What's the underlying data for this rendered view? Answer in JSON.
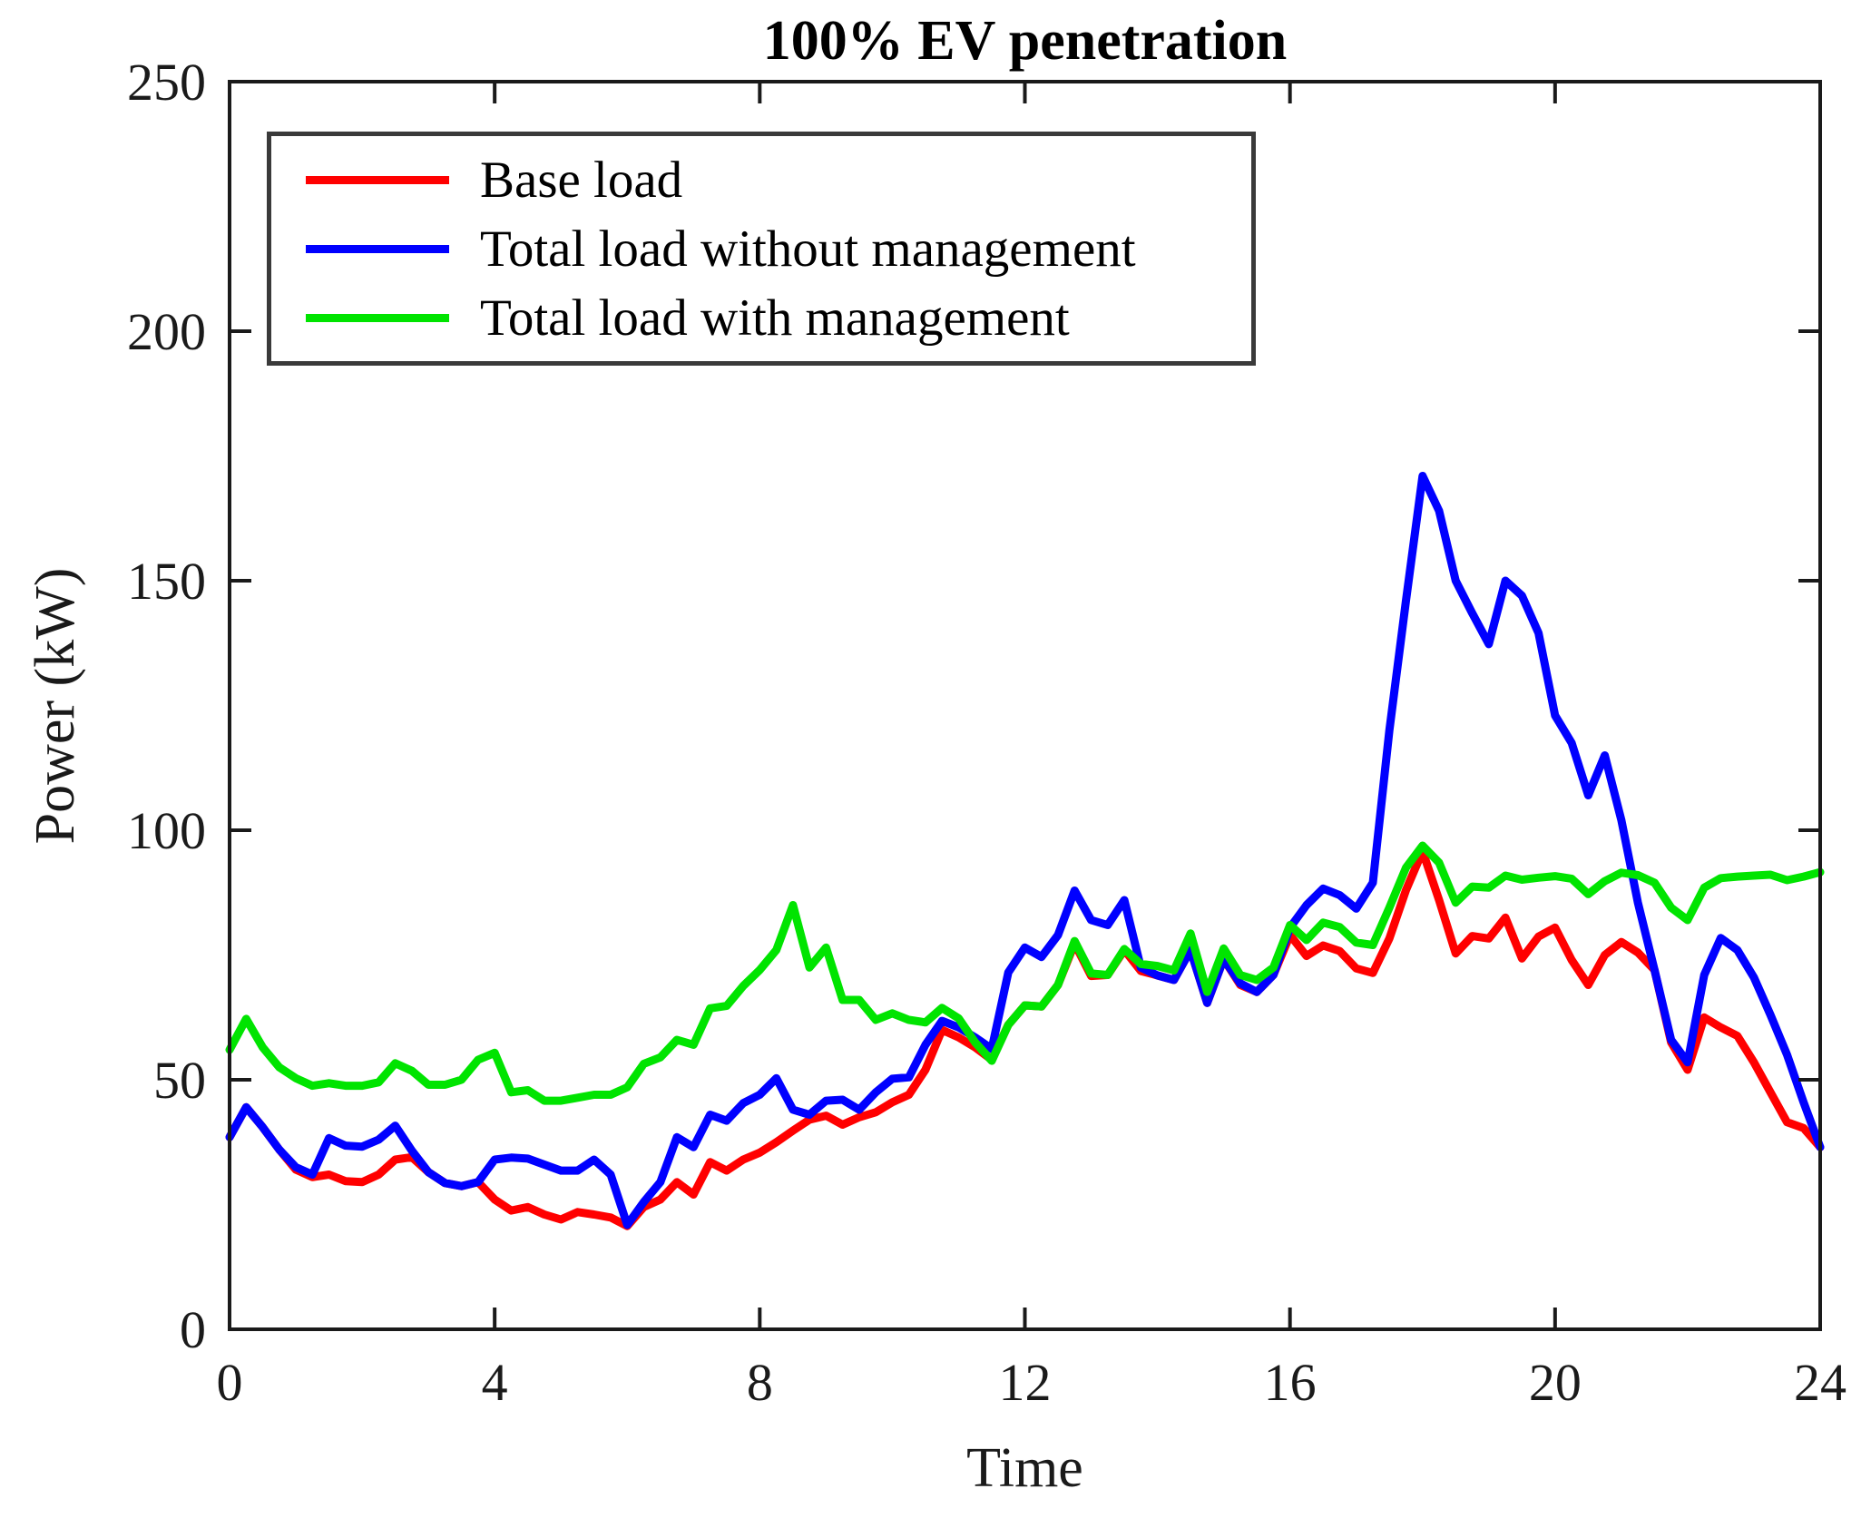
{
  "figure": {
    "background": "#ffffff",
    "axis_color": "#1a1a1a"
  },
  "chart_data": {
    "type": "line",
    "title": "100% EV penetration",
    "xlabel": "Time",
    "ylabel": "Power (kW)",
    "xlim": [
      0,
      24
    ],
    "ylim": [
      0,
      250
    ],
    "xticks": [
      0,
      4,
      8,
      12,
      16,
      20,
      24
    ],
    "yticks": [
      0,
      50,
      100,
      150,
      200,
      250
    ],
    "grid": false,
    "legend_position": "top-left",
    "x_start": 0,
    "x_step": 0.25,
    "series": [
      {
        "name": "Base load",
        "color": "#ff0000",
        "values": [
          38.5,
          44.5,
          40.5,
          36,
          32,
          30.5,
          31,
          29.7,
          29.5,
          31,
          34,
          34.5,
          31.5,
          29.3,
          28.7,
          29.5,
          26,
          23.8,
          24.5,
          23,
          22,
          23.5,
          23,
          22.4,
          20.7,
          24.5,
          26,
          29.5,
          27,
          33.5,
          31.8,
          34,
          35.4,
          37.5,
          39.8,
          42,
          42.8,
          41,
          42.5,
          43.5,
          45.5,
          47,
          52,
          60,
          58.5,
          56.5,
          54,
          61,
          64.9,
          64.7,
          69,
          77.3,
          70.8,
          71,
          76,
          71.8,
          70.9,
          70,
          76,
          65.4,
          74.2,
          69,
          67.6,
          71,
          79,
          74.8,
          76.9,
          75.8,
          72.3,
          71.4,
          78.3,
          88,
          95.8,
          86,
          75.3,
          78.8,
          78.3,
          82.5,
          74.3,
          78.7,
          80.5,
          74,
          69,
          75,
          77.6,
          75.5,
          72,
          57.5,
          52,
          62.5,
          60.5,
          58.8,
          53.5,
          47.5,
          41.5,
          40.3,
          36.5
        ]
      },
      {
        "name": "Total load without management",
        "color": "#0000ff",
        "values": [
          38.5,
          44.5,
          40.5,
          36,
          32.5,
          31,
          38.3,
          36.8,
          36.6,
          38,
          40.8,
          35.8,
          31.5,
          29.3,
          28.7,
          29.5,
          34,
          34.4,
          34.2,
          33,
          31.8,
          31.8,
          34,
          31,
          20.9,
          25.5,
          29.5,
          38.5,
          36.5,
          43,
          41.8,
          45.3,
          47,
          50.3,
          44,
          43,
          45.8,
          46,
          44,
          47.5,
          50.2,
          50.5,
          57,
          61.8,
          60.5,
          58.5,
          56.2,
          71.5,
          76.5,
          74.6,
          79,
          87.9,
          82,
          81,
          86,
          72.5,
          70.9,
          70,
          76,
          65.4,
          74.2,
          69.3,
          67.6,
          71,
          80.5,
          85,
          88.3,
          87,
          84.3,
          89.5,
          120,
          146,
          171,
          164,
          150,
          143.5,
          137.3,
          150,
          147,
          139.5,
          123,
          117.5,
          107,
          115,
          102,
          85.5,
          72,
          58,
          53.5,
          71,
          78.4,
          76,
          70.5,
          63,
          55,
          45.5,
          36.5
        ]
      },
      {
        "name": "Total load with management",
        "color": "#00e400",
        "values": [
          56,
          62.2,
          56.5,
          52.5,
          50.3,
          48.8,
          49.3,
          48.8,
          48.8,
          49.5,
          53.3,
          51.8,
          49,
          49,
          50,
          54,
          55.4,
          47.5,
          47.9,
          45.8,
          45.8,
          46.4,
          47,
          47,
          48.5,
          53.2,
          54.5,
          58,
          57,
          64.3,
          64.8,
          68.8,
          72,
          76,
          85,
          72.5,
          76.5,
          66,
          66,
          62,
          63.3,
          62,
          61.5,
          64.4,
          62.3,
          57.5,
          53.8,
          61,
          64.9,
          64.7,
          69,
          77.8,
          71.3,
          71,
          76.2,
          73.2,
          72.8,
          71.9,
          79.3,
          67.6,
          76.3,
          71,
          70,
          72.5,
          81,
          78,
          81.5,
          80.6,
          77.5,
          77,
          84.5,
          92.5,
          96.9,
          93.5,
          85.5,
          88.7,
          88.5,
          90.9,
          90.1,
          90.5,
          90.8,
          90.3,
          87.2,
          89.8,
          91.5,
          91,
          89.5,
          84.5,
          82,
          88.5,
          90.4,
          90.7,
          90.9,
          91.1,
          90,
          90.7,
          91.6
        ]
      }
    ]
  }
}
